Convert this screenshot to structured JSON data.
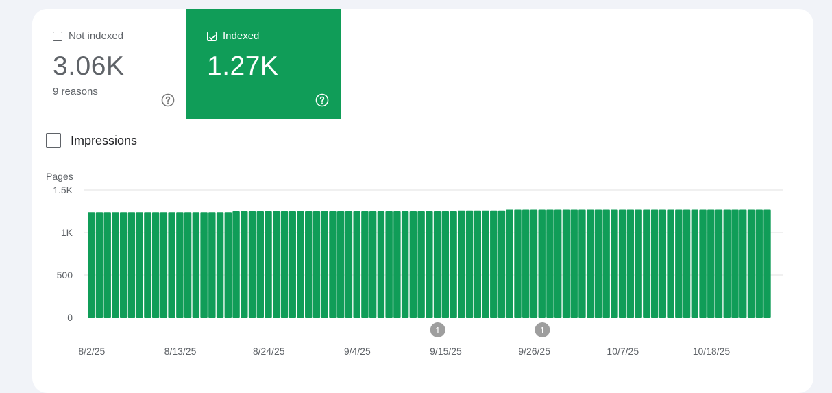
{
  "tiles": {
    "not_indexed": {
      "label": "Not indexed",
      "value": "3.06K",
      "sub": "9 reasons",
      "checked": false
    },
    "indexed": {
      "label": "Indexed",
      "value": "1.27K",
      "checked": true
    }
  },
  "impressions": {
    "label": "Impressions",
    "checked": false
  },
  "colors": {
    "indexed": "#109d58",
    "annotation": "#9e9e9e",
    "grid": "#e0e0e0"
  },
  "chart_data": {
    "type": "bar",
    "ylabel": "Pages",
    "ylim": [
      0,
      1500
    ],
    "yticks": [
      {
        "value": 0,
        "label": "0"
      },
      {
        "value": 500,
        "label": "500"
      },
      {
        "value": 1000,
        "label": "1K"
      },
      {
        "value": 1500,
        "label": "1.5K"
      }
    ],
    "x_tick_labels": [
      "8/2/25",
      "8/13/25",
      "8/24/25",
      "9/4/25",
      "9/15/25",
      "9/26/25",
      "10/7/25",
      "10/18/25"
    ],
    "x_tick_index": [
      0,
      11,
      22,
      33,
      44,
      55,
      66,
      77
    ],
    "series": [
      {
        "values": [
          1240,
          1240,
          1240,
          1240,
          1240,
          1240,
          1240,
          1240,
          1240,
          1240,
          1240,
          1240,
          1240,
          1240,
          1240,
          1240,
          1240,
          1240,
          1250,
          1250,
          1250,
          1250,
          1250,
          1250,
          1250,
          1250,
          1250,
          1250,
          1250,
          1250,
          1250,
          1250,
          1250,
          1250,
          1250,
          1250,
          1250,
          1250,
          1250,
          1250,
          1250,
          1250,
          1250,
          1250,
          1250,
          1250,
          1260,
          1260,
          1260,
          1260,
          1260,
          1260,
          1270,
          1270,
          1270,
          1270,
          1270,
          1270,
          1270,
          1270,
          1270,
          1270,
          1270,
          1270,
          1270,
          1270,
          1270,
          1270,
          1270,
          1270,
          1270,
          1270,
          1270,
          1270,
          1270,
          1270,
          1270,
          1270,
          1270,
          1270,
          1270,
          1270,
          1270,
          1270,
          1270
        ]
      }
    ],
    "annotations": [
      {
        "label": "1",
        "index": 43
      },
      {
        "label": "1",
        "index": 56
      }
    ]
  }
}
